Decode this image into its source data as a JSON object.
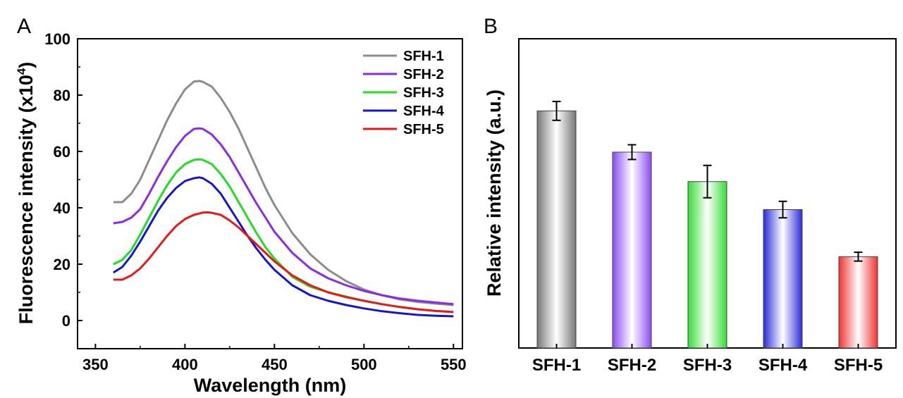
{
  "chart_data": [
    {
      "panel": "A",
      "type": "line",
      "xlabel": "Wavelength (nm)",
      "ylabel_prefix": "Fluorescence intensity (x10",
      "ylabel_exp": "4",
      "ylabel_suffix": ")",
      "xlim": [
        340,
        555
      ],
      "ylim": [
        -10,
        100
      ],
      "xticks": [
        350,
        400,
        450,
        500,
        550
      ],
      "yticks": [
        0,
        20,
        40,
        60,
        80,
        100
      ],
      "legend_position": "top-right",
      "series": [
        {
          "name": "SFH-1",
          "color": "#8c8c8c",
          "x": [
            360,
            365,
            370,
            375,
            380,
            385,
            390,
            395,
            400,
            405,
            408,
            410,
            415,
            420,
            425,
            430,
            435,
            440,
            445,
            450,
            460,
            470,
            480,
            490,
            500,
            510,
            520,
            530,
            540,
            550
          ],
          "y": [
            42,
            42,
            45,
            50,
            57,
            64,
            71,
            77,
            82,
            84.8,
            85,
            84.7,
            83,
            79,
            74,
            68,
            61,
            54,
            47,
            41,
            31,
            23.5,
            18,
            14,
            11,
            9,
            7.5,
            6.6,
            6,
            5.5
          ]
        },
        {
          "name": "SFH-2",
          "color": "#8b2be2",
          "x": [
            360,
            365,
            370,
            375,
            380,
            385,
            390,
            395,
            400,
            405,
            408,
            410,
            415,
            420,
            425,
            430,
            435,
            440,
            445,
            450,
            460,
            470,
            480,
            490,
            500,
            510,
            520,
            530,
            540,
            550
          ],
          "y": [
            34.5,
            35,
            36.5,
            39.5,
            45,
            51,
            56.5,
            61.5,
            65.5,
            68,
            68.2,
            68,
            66,
            62.5,
            58,
            52.5,
            47,
            41.5,
            36.5,
            31.5,
            24,
            18.5,
            15,
            12.5,
            10.5,
            9,
            7.8,
            7,
            6.4,
            5.8
          ]
        },
        {
          "name": "SFH-3",
          "color": "#22dd22",
          "x": [
            360,
            365,
            370,
            375,
            380,
            385,
            390,
            395,
            400,
            405,
            408,
            410,
            415,
            420,
            425,
            430,
            435,
            440,
            445,
            450,
            460,
            470,
            480,
            490,
            500,
            510,
            520,
            530,
            540,
            550
          ],
          "y": [
            20,
            21.5,
            25,
            30.5,
            36.5,
            42.5,
            48,
            52.5,
            55.5,
            57,
            57.2,
            57,
            55.5,
            52,
            47.5,
            42,
            36.5,
            31,
            26,
            22,
            15.5,
            12,
            10,
            8.5,
            7,
            5.8,
            4.8,
            4,
            3.4,
            3
          ]
        },
        {
          "name": "SFH-4",
          "color": "#1515d0",
          "x": [
            360,
            365,
            370,
            375,
            380,
            385,
            390,
            395,
            400,
            405,
            408,
            410,
            415,
            420,
            425,
            430,
            435,
            440,
            445,
            450,
            460,
            470,
            480,
            490,
            500,
            510,
            520,
            530,
            540,
            550
          ],
          "y": [
            17,
            19,
            23,
            28,
            33.5,
            39,
            43.5,
            47,
            49.5,
            50.5,
            50.8,
            50.5,
            48.5,
            45,
            40,
            35,
            30,
            25.5,
            21.5,
            18,
            12.5,
            9,
            7,
            5.5,
            4.3,
            3.3,
            2.6,
            2,
            1.7,
            1.5
          ]
        },
        {
          "name": "SFH-5",
          "color": "#e81818",
          "x": [
            360,
            365,
            370,
            375,
            380,
            385,
            390,
            395,
            400,
            405,
            410,
            413,
            415,
            420,
            425,
            430,
            435,
            440,
            445,
            450,
            460,
            470,
            480,
            490,
            500,
            510,
            520,
            530,
            540,
            550
          ],
          "y": [
            14.5,
            14.5,
            16,
            18.5,
            22,
            26,
            30,
            33.5,
            36,
            37.5,
            38.3,
            38.4,
            38.2,
            37.5,
            35.5,
            33,
            30,
            27,
            24,
            21,
            16,
            12.5,
            10,
            8.3,
            7,
            5.8,
            4.8,
            4,
            3.4,
            3
          ]
        }
      ]
    },
    {
      "panel": "B",
      "type": "bar",
      "ylabel": "Relative intensity (a.u.)",
      "categories": [
        "SFH-1",
        "SFH-2",
        "SFH-3",
        "SFH-4",
        "SFH-5"
      ],
      "values": [
        80.5,
        66.5,
        56.5,
        47,
        31
      ],
      "errors": [
        3.2,
        2.5,
        5.5,
        2.8,
        1.5
      ],
      "colors": [
        "#777777",
        "#8a4cf0",
        "#33dd33",
        "#2b2bd8",
        "#ee3333"
      ],
      "ylim": [
        0,
        105
      ],
      "y_tick_labels_shown": false
    }
  ]
}
